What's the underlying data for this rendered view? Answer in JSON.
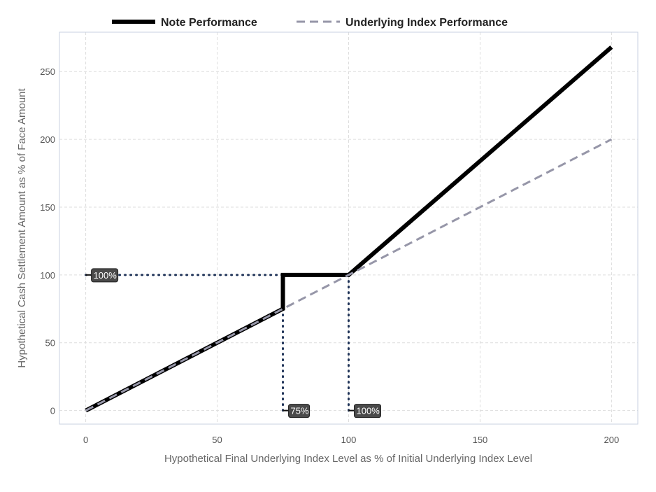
{
  "chart_data": {
    "type": "line",
    "xlabel": "Hypothetical Final Underlying Index Level as % of Initial Underlying Index Level",
    "ylabel": "Hypothetical Cash Settlement Amount as % of Face Amount",
    "xlim": [
      -10,
      210
    ],
    "ylim": [
      -10,
      279
    ],
    "x_ticks": [
      0,
      50,
      100,
      150,
      200
    ],
    "y_ticks": [
      0,
      50,
      100,
      150,
      200,
      250
    ],
    "grid": true,
    "legend_position": "top",
    "series": [
      {
        "name": "Note Performance",
        "style": "solid",
        "color": "#000000",
        "x": [
          0,
          75,
          75,
          100,
          200
        ],
        "y": [
          0,
          75,
          100,
          100,
          268
        ]
      },
      {
        "name": "Underlying Index Performance",
        "style": "dashed",
        "color": "#9696a8",
        "x": [
          0,
          200
        ],
        "y": [
          0,
          200
        ]
      }
    ],
    "reference_lines": [
      {
        "kind": "h",
        "x": [
          0,
          75
        ],
        "y": [
          100,
          100
        ],
        "color": "#1f3358"
      },
      {
        "kind": "v",
        "x": [
          75,
          75
        ],
        "y": [
          0,
          100
        ],
        "color": "#1f3358"
      },
      {
        "kind": "v",
        "x": [
          100,
          100
        ],
        "y": [
          0,
          100
        ],
        "color": "#1f3358"
      }
    ],
    "annotations": [
      {
        "text": "100%",
        "x": 0,
        "y": 100
      },
      {
        "text": "75%",
        "x": 75,
        "y": 0
      },
      {
        "text": "100%",
        "x": 100,
        "y": 0
      }
    ]
  }
}
